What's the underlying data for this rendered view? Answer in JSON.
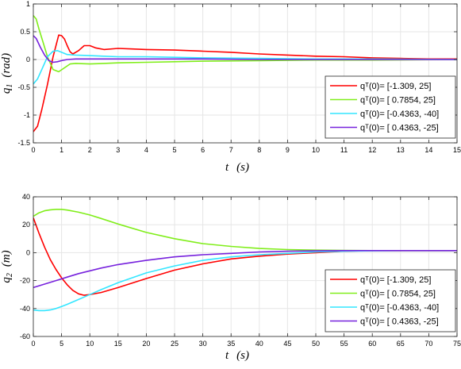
{
  "chart_data": [
    {
      "type": "line",
      "xlabel_var": "t",
      "xlabel_unit": "(s)",
      "ylabel_var": "q",
      "ylabel_sub": "1",
      "ylabel_unit": "(rad)",
      "xlim": [
        0,
        15
      ],
      "ylim": [
        -1.5,
        1
      ],
      "xticks": [
        0,
        1,
        2,
        3,
        4,
        5,
        6,
        7,
        8,
        9,
        10,
        11,
        12,
        13,
        14,
        15
      ],
      "yticks": [
        -1.5,
        -1,
        -0.5,
        0,
        0.5,
        1
      ],
      "grid": true,
      "legend_position": "bottom-right",
      "series": [
        {
          "name": "qᵀ(0)= [-1.309, 25]",
          "color": "#ff0000",
          "x": [
            0,
            0.15,
            0.3,
            0.5,
            0.7,
            0.9,
            1.0,
            1.1,
            1.2,
            1.3,
            1.4,
            1.6,
            1.8,
            2.0,
            2.2,
            2.5,
            3.0,
            3.5,
            4.0,
            5,
            6,
            7,
            8,
            9,
            10,
            11,
            12,
            13,
            14,
            15
          ],
          "y": [
            -1.3,
            -1.2,
            -0.9,
            -0.45,
            0.05,
            0.44,
            0.43,
            0.37,
            0.25,
            0.14,
            0.1,
            0.16,
            0.25,
            0.25,
            0.21,
            0.18,
            0.2,
            0.19,
            0.18,
            0.17,
            0.15,
            0.13,
            0.1,
            0.08,
            0.06,
            0.05,
            0.03,
            0.02,
            0.01,
            0.01
          ]
        },
        {
          "name": "qᵀ(0)= [ 0.7854, 25]",
          "color": "#80ee1a",
          "x": [
            0,
            0.1,
            0.2,
            0.35,
            0.5,
            0.7,
            0.9,
            1.1,
            1.3,
            1.5,
            2.0,
            2.5,
            3.0,
            4,
            5,
            6,
            8,
            10,
            12,
            15
          ],
          "y": [
            0.79,
            0.73,
            0.55,
            0.3,
            0.05,
            -0.18,
            -0.22,
            -0.15,
            -0.08,
            -0.07,
            -0.08,
            -0.07,
            -0.06,
            -0.05,
            -0.04,
            -0.03,
            -0.02,
            -0.01,
            -0.01,
            0
          ]
        },
        {
          "name": "qᵀ(0)= [-0.4363, -40]",
          "color": "#33e6ff",
          "x": [
            0,
            0.15,
            0.3,
            0.5,
            0.7,
            0.85,
            1.0,
            1.2,
            1.5,
            2.0,
            2.5,
            3.0,
            4,
            5,
            6,
            8,
            10,
            12,
            15
          ],
          "y": [
            -0.44,
            -0.35,
            -0.18,
            0.05,
            0.15,
            0.16,
            0.13,
            0.09,
            0.08,
            0.07,
            0.06,
            0.05,
            0.05,
            0.04,
            0.03,
            0.02,
            0.01,
            0.01,
            0
          ]
        },
        {
          "name": "qᵀ(0)= [ 0.4363, -25]",
          "color": "#7722dd",
          "x": [
            0,
            0.1,
            0.25,
            0.4,
            0.55,
            0.7,
            0.85,
            1.0,
            1.2,
            1.5,
            2.0,
            3.0,
            4,
            5,
            6,
            8,
            10,
            12,
            15
          ],
          "y": [
            0.43,
            0.38,
            0.22,
            0.08,
            -0.02,
            -0.05,
            -0.04,
            -0.02,
            0,
            0.01,
            0.01,
            0.01,
            0.01,
            0.01,
            0.01,
            0,
            0,
            0,
            0
          ]
        }
      ]
    },
    {
      "type": "line",
      "xlabel_var": "t",
      "xlabel_unit": "(s)",
      "ylabel_var": "q",
      "ylabel_sub": "2",
      "ylabel_unit": "(m)",
      "xlim": [
        0,
        75
      ],
      "ylim": [
        -60,
        40
      ],
      "xticks": [
        0,
        5,
        10,
        15,
        20,
        25,
        30,
        35,
        40,
        45,
        50,
        55,
        60,
        65,
        70,
        75
      ],
      "yticks": [
        -60,
        -40,
        -20,
        0,
        20,
        40
      ],
      "grid": true,
      "legend_position": "bottom-right",
      "series": [
        {
          "name": "qᵀ(0)= [-1.309, 25]",
          "color": "#ff0000",
          "x": [
            0,
            1,
            2,
            3,
            4,
            5,
            6,
            7,
            8,
            9,
            10,
            12,
            15,
            20,
            25,
            30,
            35,
            40,
            45,
            50,
            55,
            60,
            65,
            70,
            75
          ],
          "y": [
            25,
            14,
            4,
            -5,
            -12,
            -18,
            -23,
            -27,
            -29.5,
            -30.5,
            -30,
            -28.5,
            -25,
            -18.5,
            -12.5,
            -8,
            -4.5,
            -2.5,
            -1,
            0,
            1,
            1.5,
            1.5,
            1.5,
            1.5
          ]
        },
        {
          "name": "qᵀ(0)= [ 0.7854, 25]",
          "color": "#80ee1a",
          "x": [
            0,
            1,
            2,
            3,
            4,
            5,
            6,
            8,
            10,
            12,
            15,
            20,
            25,
            30,
            35,
            40,
            45,
            50,
            55,
            60,
            65,
            70,
            75
          ],
          "y": [
            26,
            28.5,
            30,
            30.7,
            31,
            31,
            30.5,
            29,
            27,
            24.5,
            20.5,
            14.5,
            10,
            6.5,
            4.5,
            3,
            2.2,
            1.8,
            1.6,
            1.5,
            1.5,
            1.5,
            1.5
          ]
        },
        {
          "name": "qᵀ(0)= [-0.4363, -40]",
          "color": "#33e6ff",
          "x": [
            0,
            1,
            2,
            3,
            4,
            5,
            6,
            8,
            10,
            12,
            15,
            20,
            25,
            30,
            35,
            40,
            45,
            50,
            55,
            60,
            65,
            70,
            75
          ],
          "y": [
            -41,
            -41.5,
            -41.5,
            -41,
            -40,
            -38.5,
            -37,
            -33.5,
            -30,
            -26.5,
            -21.5,
            -14.5,
            -9.5,
            -5.5,
            -3,
            -1.5,
            -0.5,
            0.5,
            1,
            1.3,
            1.5,
            1.5,
            1.5
          ]
        },
        {
          "name": "qᵀ(0)= [ 0.4363, -25]",
          "color": "#7722dd",
          "x": [
            0,
            2,
            4,
            6,
            8,
            10,
            12,
            15,
            20,
            25,
            30,
            35,
            40,
            45,
            50,
            55,
            60,
            65,
            70,
            75
          ],
          "y": [
            -25,
            -22.5,
            -20,
            -17.5,
            -15,
            -13,
            -11,
            -8.5,
            -5.5,
            -3,
            -1.5,
            -0.5,
            0.5,
            1,
            1.3,
            1.5,
            1.5,
            1.5,
            1.5,
            1.5
          ]
        }
      ]
    }
  ]
}
